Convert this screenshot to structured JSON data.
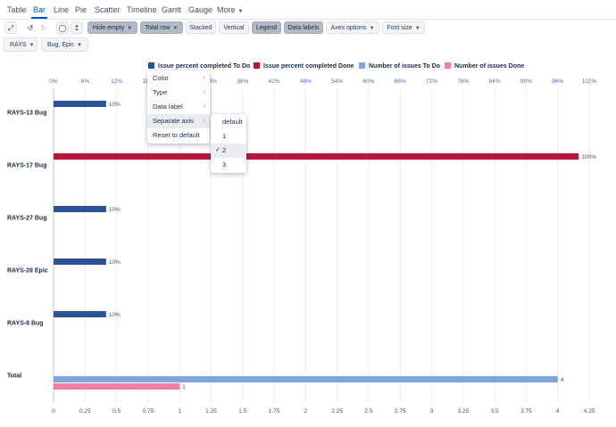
{
  "tabs": [
    "Table",
    "Bar",
    "Line",
    "Pie",
    "Scatter",
    "Timeline",
    "Gantt",
    "Gauge",
    "More"
  ],
  "active_tab": "Bar",
  "toolbar": {
    "hide_empty": "Hide empty",
    "total_row": "Total row",
    "stacked": "Stacked",
    "vertical": "Vertical",
    "legend": "Legend",
    "data_labels": "Data labels",
    "axes_options": "Axes options",
    "font_size": "Font size",
    "icons": [
      "expand-icon",
      "undo-icon",
      "redo-icon",
      "comment-icon",
      "upload-icon"
    ]
  },
  "filters": {
    "project": "RAYS",
    "issue_types": "Bug, Epic"
  },
  "context_menu": {
    "items": [
      "Color",
      "Type",
      "Data label",
      "Separate axis",
      "Reset to default"
    ],
    "highlighted": "Separate axis",
    "submenu": {
      "items": [
        "default",
        "1",
        "2",
        "3"
      ],
      "checked": "2"
    }
  },
  "colors": {
    "todo_percent": "#2b5197",
    "done_percent": "#b8173b",
    "todo_count": "#7ea5de",
    "done_count": "#f27ea2",
    "accent": "#0052cc"
  },
  "chart_data": {
    "type": "bar",
    "orientation": "horizontal",
    "legend": [
      "Issue percent completed To Do",
      "Issue percent completed Done",
      "Number of issues To Do",
      "Number of issues Done"
    ],
    "legend_position": "top",
    "grid": true,
    "categories": [
      "RAYS-13  Bug",
      "RAYS-17  Bug",
      "RAYS-27  Bug",
      "RAYS-28 Epic",
      "RAYS-8    Bug",
      "Total"
    ],
    "top_axis": {
      "ticks": [
        "0%",
        "6%",
        "12%",
        "18%",
        "24%",
        "30%",
        "36%",
        "42%",
        "48%",
        "54%",
        "60%",
        "66%",
        "72%",
        "78%",
        "84%",
        "90%",
        "96%",
        "102%"
      ],
      "range": [
        0,
        102
      ]
    },
    "bottom_axis": {
      "ticks": [
        "0",
        "0.25",
        "0.5",
        "0.75",
        "1",
        "1.25",
        "1.5",
        "1.75",
        "2",
        "2.25",
        "2.5",
        "2.75",
        "3",
        "3.25",
        "3.5",
        "3.75",
        "4",
        "4.25"
      ],
      "range": [
        0,
        4.25
      ]
    },
    "series": [
      {
        "name": "Issue percent completed To Do",
        "axis": "top",
        "values": [
          10,
          null,
          10,
          10,
          10,
          null
        ],
        "labels": [
          "10%",
          "",
          "10%",
          "10%",
          "10%",
          ""
        ]
      },
      {
        "name": "Issue percent completed Done",
        "axis": "top",
        "values": [
          null,
          100,
          null,
          null,
          null,
          null
        ],
        "labels": [
          "",
          "100%",
          "",
          "",
          "",
          ""
        ]
      },
      {
        "name": "Number of issues To Do",
        "axis": "bottom",
        "values": [
          null,
          null,
          null,
          null,
          null,
          4
        ],
        "labels": [
          "",
          "",
          "",
          "",
          "",
          "4"
        ]
      },
      {
        "name": "Number of issues Done",
        "axis": "bottom",
        "values": [
          null,
          null,
          null,
          null,
          null,
          1
        ],
        "labels": [
          "",
          "",
          "",
          "",
          "",
          "1"
        ]
      }
    ]
  }
}
